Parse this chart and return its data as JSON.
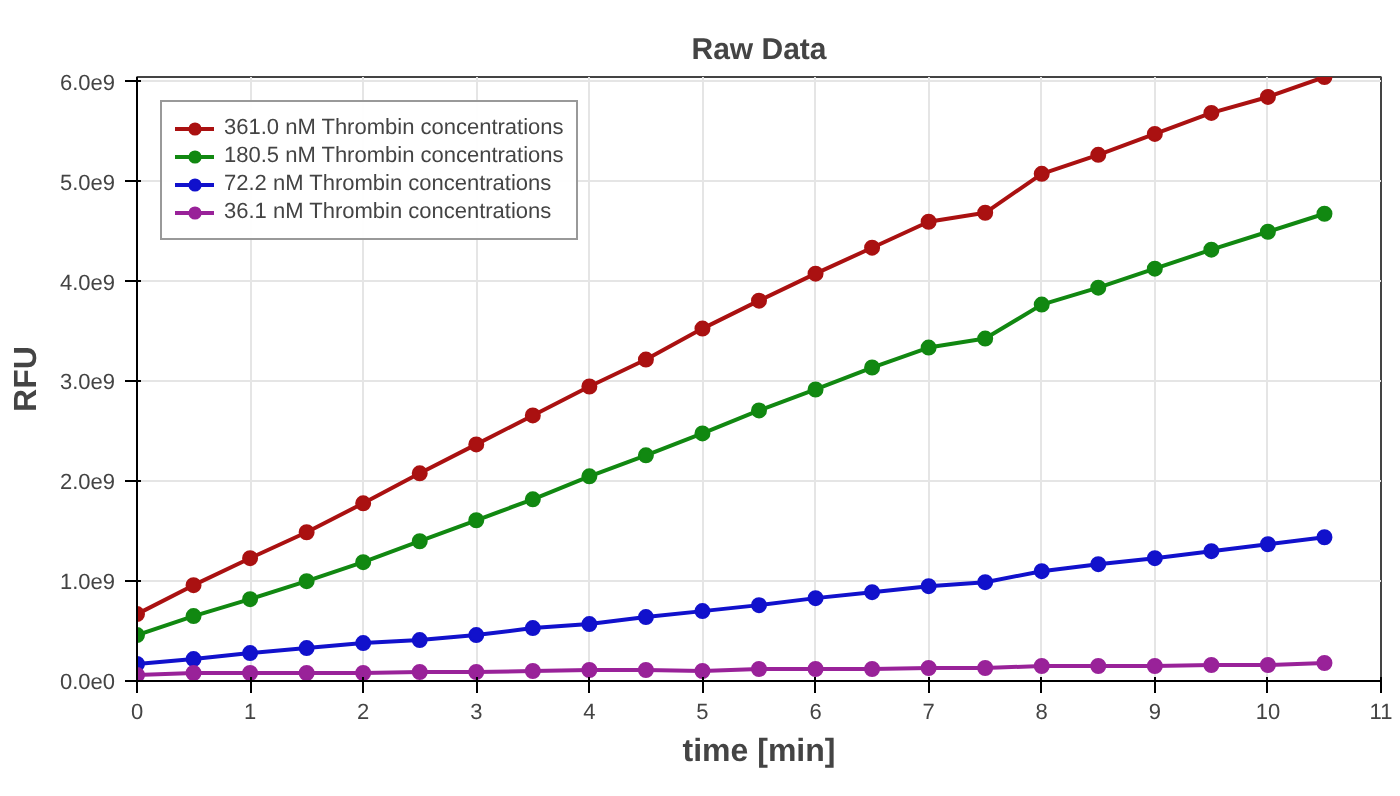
{
  "chart_data": {
    "type": "line",
    "title": "Raw Data",
    "xlabel": "time [min]",
    "ylabel": "RFU",
    "x": [
      0,
      0.5,
      1,
      1.5,
      2,
      2.5,
      3,
      3.5,
      4,
      4.5,
      5,
      5.5,
      6,
      6.5,
      7,
      7.5,
      8,
      8.5,
      9,
      9.5,
      10,
      10.5
    ],
    "series": [
      {
        "name": "361.0 nM Thrombin concentrations",
        "color": "#aa1111",
        "values": [
          670000000.0,
          960000000.0,
          1230000000.0,
          1490000000.0,
          1780000000.0,
          2080000000.0,
          2370000000.0,
          2660000000.0,
          2950000000.0,
          3220000000.0,
          3530000000.0,
          3810000000.0,
          4080000000.0,
          4340000000.0,
          4600000000.0,
          4690000000.0,
          5080000000.0,
          5270000000.0,
          5480000000.0,
          5690000000.0,
          5850000000.0,
          6050000000.0
        ]
      },
      {
        "name": "180.5 nM Thrombin concentrations",
        "color": "#118811",
        "values": [
          460000000.0,
          650000000.0,
          820000000.0,
          1000000000.0,
          1190000000.0,
          1400000000.0,
          1610000000.0,
          1820000000.0,
          2050000000.0,
          2260000000.0,
          2480000000.0,
          2710000000.0,
          2920000000.0,
          3140000000.0,
          3340000000.0,
          3430000000.0,
          3770000000.0,
          3940000000.0,
          4130000000.0,
          4320000000.0,
          4500000000.0,
          4680000000.0
        ]
      },
      {
        "name": "72.2 nM Thrombin concentrations",
        "color": "#1111cc",
        "values": [
          170000000.0,
          220000000.0,
          280000000.0,
          330000000.0,
          380000000.0,
          410000000.0,
          460000000.0,
          530000000.0,
          570000000.0,
          640000000.0,
          700000000.0,
          760000000.0,
          830000000.0,
          890000000.0,
          950000000.0,
          990000000.0,
          1100000000.0,
          1170000000.0,
          1230000000.0,
          1300000000.0,
          1370000000.0,
          1440000000.0
        ]
      },
      {
        "name": "36.1 nM Thrombin concentrations",
        "color": "#992299",
        "values": [
          60000000.0,
          80000000.0,
          80000000.0,
          80000000.0,
          80000000.0,
          90000000.0,
          90000000.0,
          100000000.0,
          110000000.0,
          110000000.0,
          100000000.0,
          120000000.0,
          120000000.0,
          120000000.0,
          130000000.0,
          130000000.0,
          150000000.0,
          150000000.0,
          150000000.0,
          160000000.0,
          160000000.0,
          180000000.0
        ]
      }
    ],
    "xlim": [
      0,
      11
    ],
    "xticks": [
      0,
      1,
      2,
      3,
      4,
      5,
      6,
      7,
      8,
      9,
      10,
      11
    ],
    "ylim": [
      0,
      6050000000.0
    ],
    "yticks": [
      {
        "value": 0,
        "label": "0.0e0"
      },
      {
        "value": 1000000000.0,
        "label": "1.0e9"
      },
      {
        "value": 2000000000.0,
        "label": "2.0e9"
      },
      {
        "value": 3000000000.0,
        "label": "3.0e9"
      },
      {
        "value": 4000000000.0,
        "label": "4.0e9"
      },
      {
        "value": 5000000000.0,
        "label": "5.0e9"
      },
      {
        "value": 6000000000.0,
        "label": "6.0e9"
      }
    ],
    "grid": true,
    "legend": "top left",
    "marker": "circle",
    "line_style": "solid"
  }
}
